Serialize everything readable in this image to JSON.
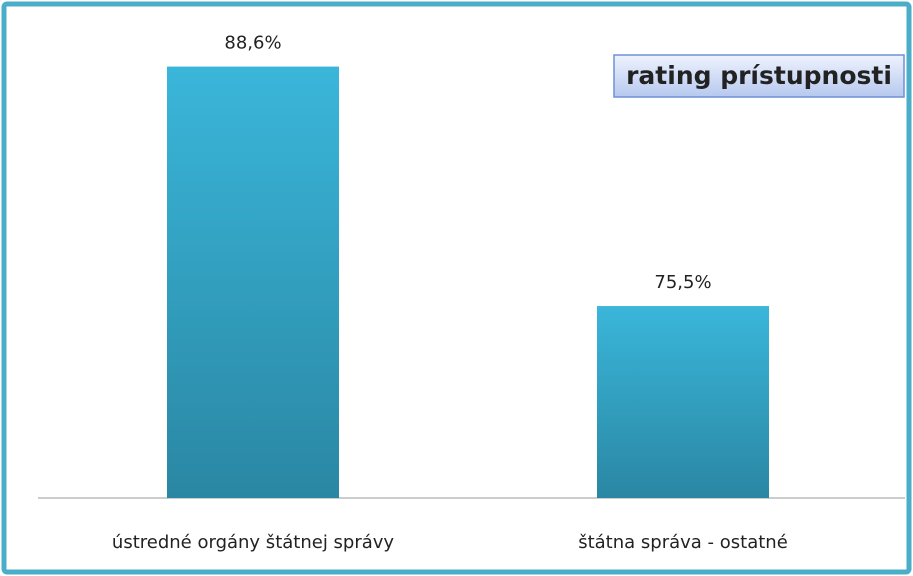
{
  "chart_data": {
    "type": "bar",
    "title": "rating prístupnosti",
    "categories": [
      "ústredné orgány štátnej správy",
      "štátna správa - ostatné"
    ],
    "values": [
      88.6,
      75.5
    ],
    "value_labels": [
      "88,6%",
      "75,5%"
    ],
    "color": "#31a9cc",
    "ylim": [
      65,
      90
    ]
  }
}
